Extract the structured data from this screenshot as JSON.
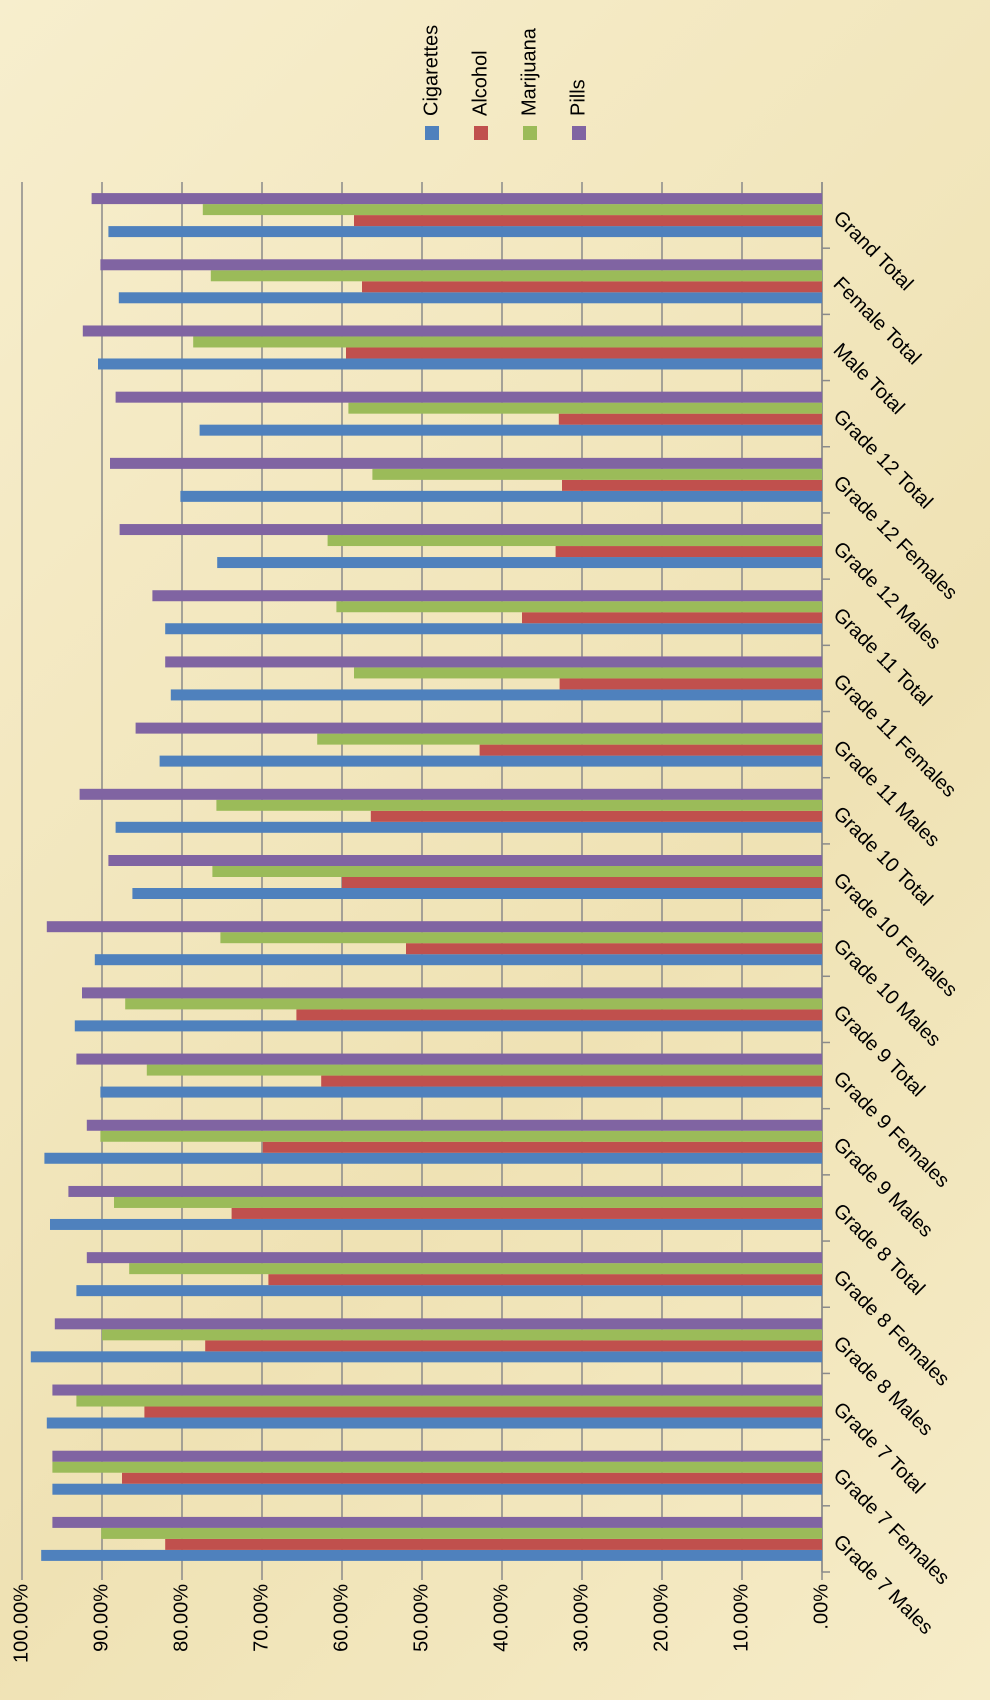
{
  "chart_data": {
    "type": "bar",
    "categories": [
      "Grade 7 Males",
      "Grade 7 Females",
      "Grade 7 Total",
      "Grade 8 Males",
      "Grade 8 Females",
      "Grade 8 Total",
      "Grade 9 Males",
      "Grade 9 Females",
      "Grade 9 Total",
      "Grade 10 Males",
      "Grade 10 Females",
      "Grade 10 Total",
      "Grade 11 Males",
      "Grade 11 Females",
      "Grade 11 Total",
      "Grade 12 Males",
      "Grade 12 Females",
      "Grade 12 Total",
      "Male Total",
      "Female Total",
      "Grand Total"
    ],
    "series": [
      {
        "name": "Cigarettes",
        "color": "#4f81bd",
        "values": [
          97.6,
          96.2,
          96.9,
          98.9,
          93.2,
          96.5,
          97.2,
          90.2,
          93.4,
          90.9,
          86.2,
          88.3,
          82.8,
          81.4,
          82.1,
          75.6,
          80.2,
          77.8,
          90.5,
          87.9,
          89.2
        ]
      },
      {
        "name": "Alcohol",
        "color": "#c0504d",
        "values": [
          82.1,
          87.5,
          84.7,
          77.1,
          69.2,
          73.8,
          69.9,
          62.6,
          65.7,
          52.0,
          60.0,
          56.4,
          42.8,
          32.8,
          37.5,
          33.3,
          32.5,
          32.9,
          59.5,
          57.5,
          58.5
        ]
      },
      {
        "name": "Marijuana",
        "color": "#9bbb59",
        "values": [
          90.1,
          96.2,
          93.2,
          90.0,
          86.6,
          88.5,
          90.2,
          84.4,
          87.1,
          75.2,
          76.2,
          75.7,
          63.1,
          58.5,
          60.7,
          61.8,
          56.2,
          59.2,
          78.6,
          76.4,
          77.4
        ]
      },
      {
        "name": "Pills",
        "color": "#8064a2",
        "values": [
          96.2,
          96.2,
          96.2,
          95.9,
          91.9,
          94.2,
          91.9,
          93.2,
          92.5,
          96.9,
          89.2,
          92.8,
          85.8,
          82.1,
          83.7,
          87.8,
          89.0,
          88.3,
          92.4,
          90.2,
          91.3
        ]
      }
    ],
    "ylim": [
      0,
      100
    ],
    "yticks": [
      {
        "value": 0,
        "label": ".00%"
      },
      {
        "value": 10,
        "label": "10.00%"
      },
      {
        "value": 20,
        "label": "20.00%"
      },
      {
        "value": 30,
        "label": "30.00%"
      },
      {
        "value": 40,
        "label": "40.00%"
      },
      {
        "value": 50,
        "label": "50.00%"
      },
      {
        "value": 60,
        "label": "60.00%"
      },
      {
        "value": 70,
        "label": "70.00%"
      },
      {
        "value": 80,
        "label": "80.00%"
      },
      {
        "value": 90,
        "label": "90.00%"
      },
      {
        "value": 100,
        "label": "100.00%"
      }
    ],
    "grid": true
  }
}
